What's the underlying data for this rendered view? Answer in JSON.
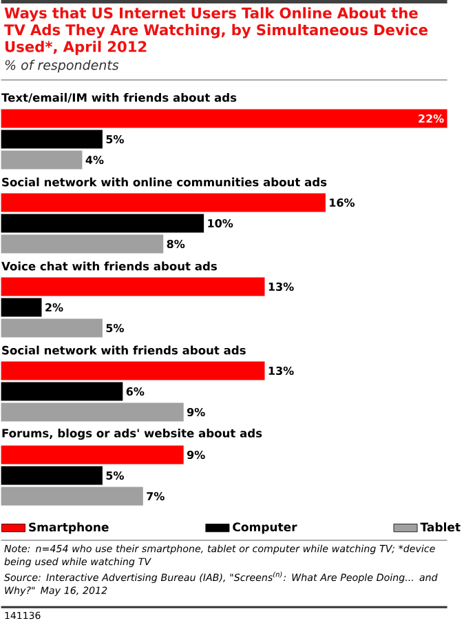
{
  "chart_data": {
    "type": "bar",
    "orientation": "horizontal",
    "title": "Ways that US Internet Users Talk Online About the TV Ads They Are Watching, by Simultaneous Device Used*, April 2012",
    "subtitle": "% of respondents",
    "categories": [
      "Text/email/IM with friends about ads",
      "Social network with online communities about ads",
      "Voice chat with friends about ads",
      "Social network with friends about ads",
      "Forums, blogs or ads' website about ads"
    ],
    "series": [
      {
        "name": "Smartphone",
        "color": "#ff0000",
        "values": [
          22,
          16,
          13,
          13,
          9
        ],
        "value_labels": [
          "22%",
          "16%",
          "13%",
          "13%",
          "9%"
        ]
      },
      {
        "name": "Computer",
        "color": "#000000",
        "values": [
          5,
          10,
          2,
          6,
          5
        ],
        "value_labels": [
          "5%",
          "10%",
          "2%",
          "6%",
          "5%"
        ]
      },
      {
        "name": "Tablet",
        "color": "#a0a0a0",
        "values": [
          4,
          8,
          5,
          9,
          7
        ],
        "value_labels": [
          "4%",
          "8%",
          "5%",
          "9%",
          "7%"
        ]
      }
    ],
    "legend": "bottom",
    "annotations": [
      "Note: n=454 who use their smartphone, tablet or computer while watching TV; *device being used while watching TV",
      "Source: Interactive Advertising Bureau (IAB), \"Screens$^{(n)}$: What Are People Doing... and Why?\" May 16, 2012",
      "141136"
    ]
  }
}
